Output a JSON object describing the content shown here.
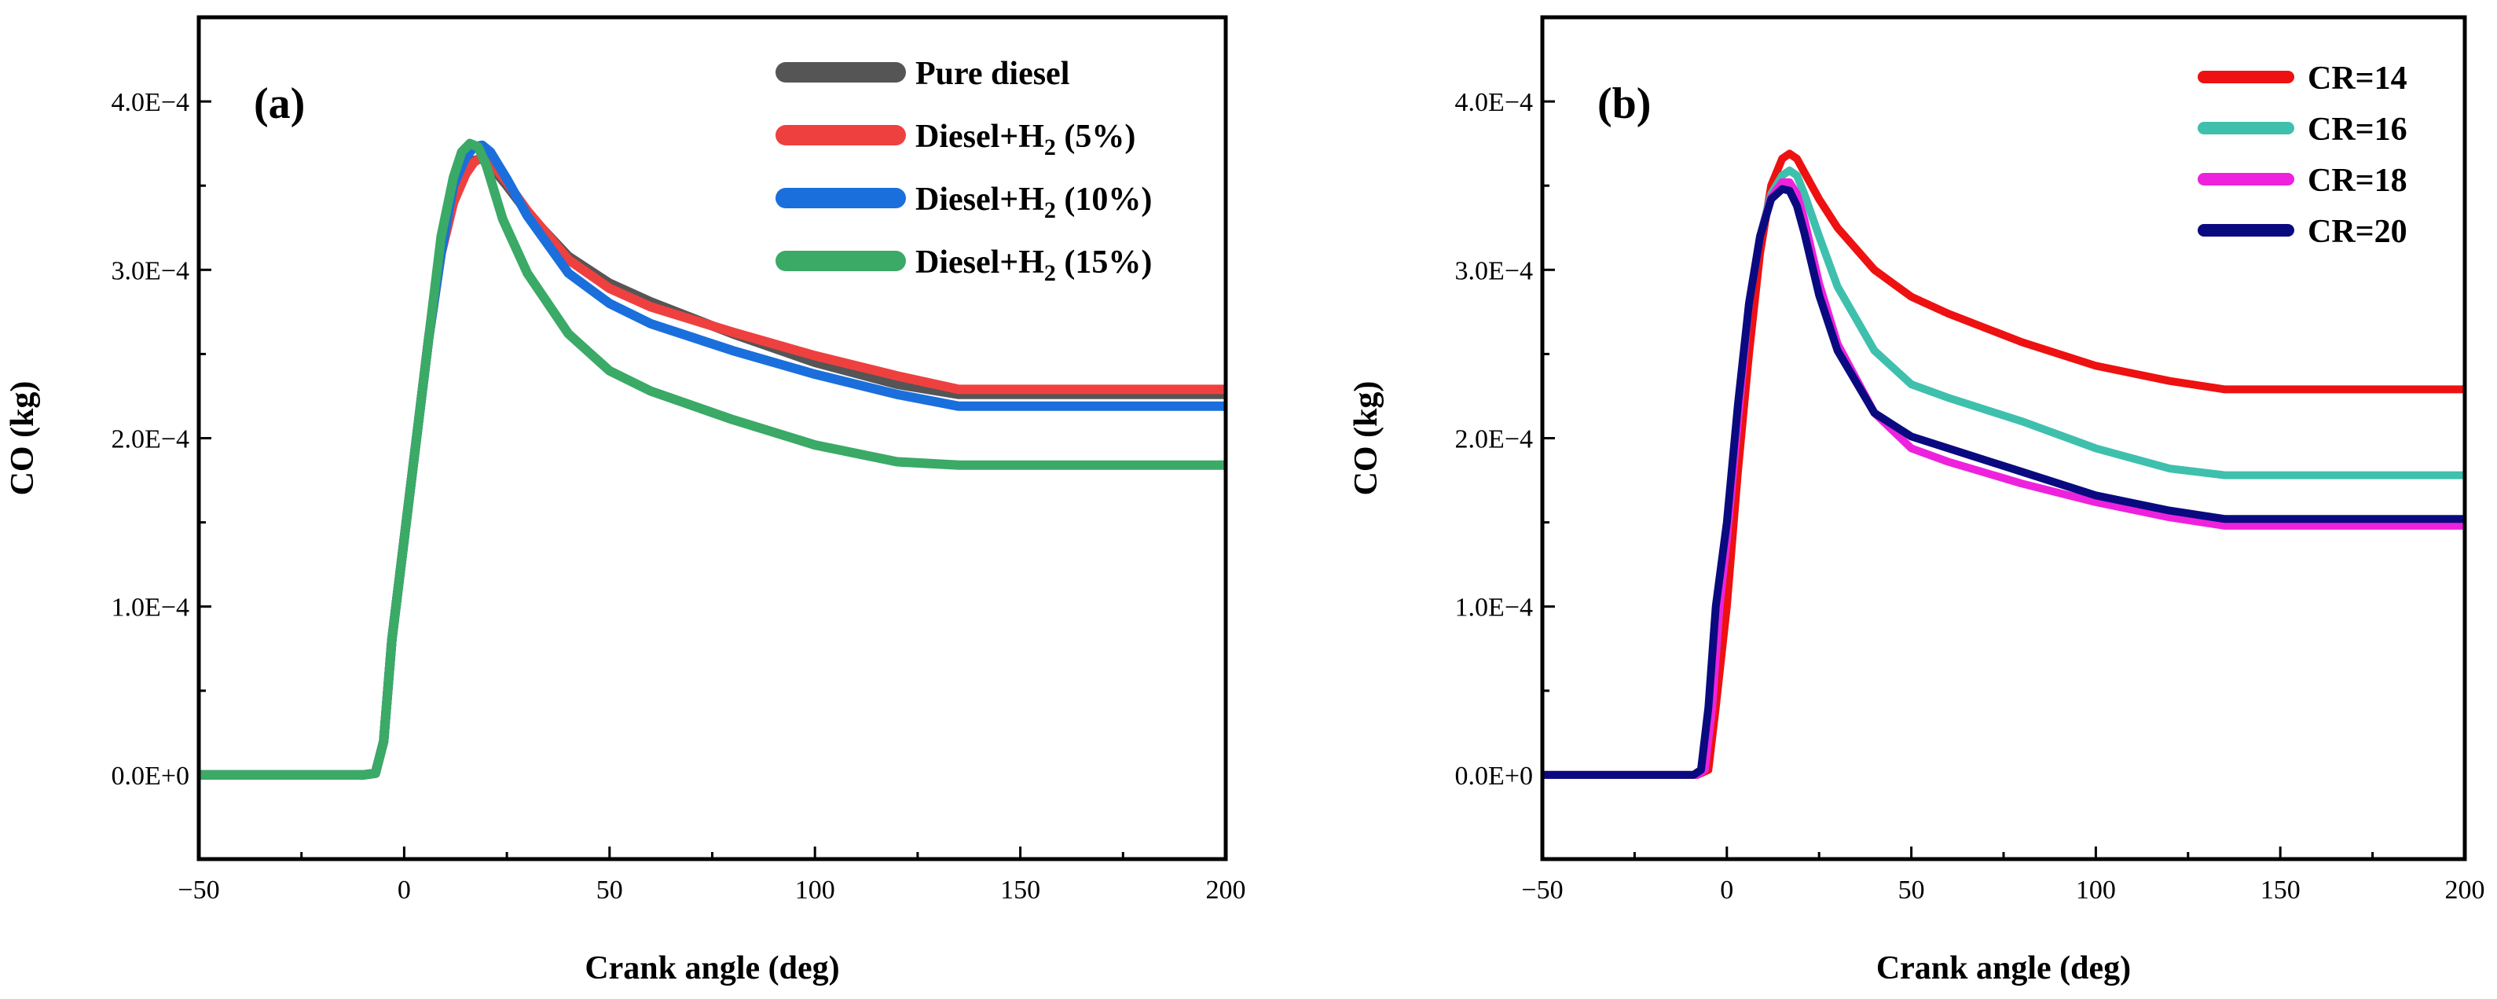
{
  "chart_data": [
    {
      "type": "line",
      "panel_label": "(a)",
      "xlabel": "Crank angle (deg)",
      "ylabel": "CO (kg)",
      "xlim": [
        -50,
        200
      ],
      "ylim": [
        -5e-05,
        0.00045
      ],
      "xticks": [
        -50,
        0,
        50,
        100,
        150,
        200
      ],
      "xtick_labels": [
        "−50",
        "0",
        "50",
        "100",
        "150",
        "200"
      ],
      "yticks": [
        0,
        0.0001,
        0.0002,
        0.0003,
        0.0004
      ],
      "ytick_labels": [
        "0.0E+0",
        "1.0E−4",
        "2.0E−4",
        "3.0E−4",
        "4.0E−4"
      ],
      "legend_position": "top-right",
      "series": [
        {
          "name": "Pure diesel",
          "legend": {
            "main": "Pure diesel",
            "sub": "",
            "tail": ""
          },
          "color": "#555555",
          "x": [
            -50,
            -10,
            -7,
            -5,
            -3,
            0,
            3,
            6,
            9,
            12,
            15,
            17,
            19,
            21,
            25,
            30,
            40,
            50,
            60,
            80,
            100,
            120,
            135,
            150,
            200
          ],
          "y": [
            0,
            0,
            1e-06,
            2e-05,
            8e-05,
            0.00014,
            0.0002,
            0.00026,
            0.00031,
            0.00034,
            0.000358,
            0.000365,
            0.000366,
            0.000362,
            0.00035,
            0.000334,
            0.000308,
            0.000292,
            0.000281,
            0.000262,
            0.000245,
            0.000232,
            0.000226,
            0.000226,
            0.000226
          ]
        },
        {
          "name": "Diesel+H2 (5%)",
          "legend": {
            "main": "Diesel+H",
            "sub": "2",
            "tail": " (5%)"
          },
          "color": "#ef4040",
          "x": [
            -50,
            -10,
            -7,
            -5,
            -3,
            0,
            3,
            6,
            9,
            12,
            15,
            17,
            19,
            21,
            25,
            30,
            40,
            50,
            60,
            80,
            100,
            120,
            135,
            150,
            200
          ],
          "y": [
            0,
            0,
            1e-06,
            2e-05,
            8e-05,
            0.00014,
            0.0002,
            0.00026,
            0.00031,
            0.00034,
            0.000357,
            0.000364,
            0.000367,
            0.000364,
            0.000352,
            0.000335,
            0.000306,
            0.000289,
            0.000278,
            0.000263,
            0.000249,
            0.000237,
            0.000229,
            0.000229,
            0.000229
          ]
        },
        {
          "name": "Diesel+H2 (10%)",
          "legend": {
            "main": "Diesel+H",
            "sub": "2",
            "tail": " (10%)"
          },
          "color": "#1a6fdc",
          "x": [
            -50,
            -10,
            -7,
            -5,
            -3,
            0,
            3,
            6,
            9,
            12,
            15,
            17,
            19,
            21,
            25,
            30,
            40,
            50,
            60,
            80,
            100,
            120,
            135,
            150,
            200
          ],
          "y": [
            0,
            0,
            1e-06,
            2e-05,
            8e-05,
            0.00014,
            0.0002,
            0.00026,
            0.00031,
            0.00035,
            0.000367,
            0.000373,
            0.000374,
            0.00037,
            0.000354,
            0.000332,
            0.000298,
            0.00028,
            0.000268,
            0.000252,
            0.000238,
            0.000226,
            0.000219,
            0.000219,
            0.000219
          ]
        },
        {
          "name": "Diesel+H2 (15%)",
          "legend": {
            "main": "Diesel+H",
            "sub": "2",
            "tail": " (15%)"
          },
          "color": "#3aaa66",
          "x": [
            -50,
            -10,
            -7,
            -5,
            -3,
            0,
            3,
            6,
            9,
            12,
            14,
            16,
            18,
            20,
            24,
            30,
            40,
            50,
            60,
            80,
            100,
            120,
            135,
            150,
            200
          ],
          "y": [
            0,
            0,
            1e-06,
            2e-05,
            8e-05,
            0.00014,
            0.0002,
            0.00026,
            0.00032,
            0.000355,
            0.00037,
            0.000375,
            0.000373,
            0.000362,
            0.00033,
            0.000298,
            0.000262,
            0.00024,
            0.000228,
            0.000211,
            0.000196,
            0.000186,
            0.000184,
            0.000184,
            0.000184
          ]
        }
      ]
    },
    {
      "type": "line",
      "panel_label": "(b)",
      "xlabel": "Crank angle (deg)",
      "ylabel": "CO (kg)",
      "xlim": [
        -50,
        200
      ],
      "ylim": [
        -5e-05,
        0.00045
      ],
      "xticks": [
        -50,
        0,
        50,
        100,
        150,
        200
      ],
      "xtick_labels": [
        "−50",
        "0",
        "50",
        "100",
        "150",
        "200"
      ],
      "yticks": [
        0,
        0.0001,
        0.0002,
        0.0003,
        0.0004
      ],
      "ytick_labels": [
        "0.0E+0",
        "1.0E−4",
        "2.0E−4",
        "3.0E−4",
        "4.0E−4"
      ],
      "legend_position": "top-right",
      "series": [
        {
          "name": "CR=14",
          "legend": {
            "main": "CR=14",
            "sub": "",
            "tail": ""
          },
          "color": "#ee1111",
          "x": [
            -50,
            -8,
            -5,
            -3,
            0,
            3,
            6,
            9,
            12,
            15,
            17,
            19,
            21,
            25,
            30,
            40,
            50,
            60,
            80,
            100,
            120,
            135,
            150,
            200
          ],
          "y": [
            0,
            0,
            3e-06,
            4e-05,
            0.0001,
            0.00018,
            0.00025,
            0.00031,
            0.00035,
            0.000366,
            0.000369,
            0.000366,
            0.000358,
            0.000342,
            0.000325,
            0.0003,
            0.000284,
            0.000274,
            0.000257,
            0.000243,
            0.000234,
            0.000229,
            0.000229,
            0.000229
          ]
        },
        {
          "name": "CR=16",
          "legend": {
            "main": "CR=16",
            "sub": "",
            "tail": ""
          },
          "color": "#3ec0ad",
          "x": [
            -50,
            -8,
            -6,
            -4,
            -2,
            0,
            3,
            6,
            9,
            12,
            15,
            17,
            19,
            21,
            25,
            30,
            40,
            50,
            60,
            80,
            100,
            120,
            135,
            150,
            200
          ],
          "y": [
            0,
            0,
            3e-06,
            4e-05,
            0.0001,
            0.00014,
            0.00021,
            0.00028,
            0.00032,
            0.000345,
            0.000356,
            0.000359,
            0.000356,
            0.000345,
            0.00032,
            0.00029,
            0.000252,
            0.000232,
            0.000224,
            0.00021,
            0.000194,
            0.000182,
            0.000178,
            0.000178,
            0.000178
          ]
        },
        {
          "name": "CR=18",
          "legend": {
            "main": "CR=18",
            "sub": "",
            "tail": ""
          },
          "color": "#ee22dd",
          "x": [
            -50,
            -8,
            -6,
            -4,
            -2,
            0,
            3,
            6,
            9,
            12,
            15,
            17,
            19,
            21,
            25,
            30,
            40,
            50,
            60,
            80,
            100,
            120,
            135,
            150,
            200
          ],
          "y": [
            0,
            0,
            3e-06,
            4e-05,
            0.0001,
            0.00014,
            0.00021,
            0.00028,
            0.00032,
            0.000343,
            0.000352,
            0.000352,
            0.000345,
            0.00033,
            0.000292,
            0.000256,
            0.000215,
            0.000194,
            0.000186,
            0.000173,
            0.000162,
            0.000153,
            0.000148,
            0.000148,
            0.000148
          ]
        },
        {
          "name": "CR=20",
          "legend": {
            "main": "CR=20",
            "sub": "",
            "tail": ""
          },
          "color": "#0a0a80",
          "x": [
            -50,
            -9,
            -7,
            -5,
            -3,
            0,
            3,
            6,
            9,
            12,
            15,
            17,
            19,
            21,
            25,
            30,
            40,
            50,
            60,
            80,
            100,
            120,
            135,
            150,
            200
          ],
          "y": [
            0,
            0,
            3e-06,
            4e-05,
            0.0001,
            0.00015,
            0.00022,
            0.00028,
            0.00032,
            0.000342,
            0.000348,
            0.000347,
            0.000338,
            0.000322,
            0.000285,
            0.000252,
            0.000215,
            0.000201,
            0.000194,
            0.00018,
            0.000166,
            0.000157,
            0.000152,
            0.000152,
            0.000152
          ]
        }
      ]
    }
  ]
}
